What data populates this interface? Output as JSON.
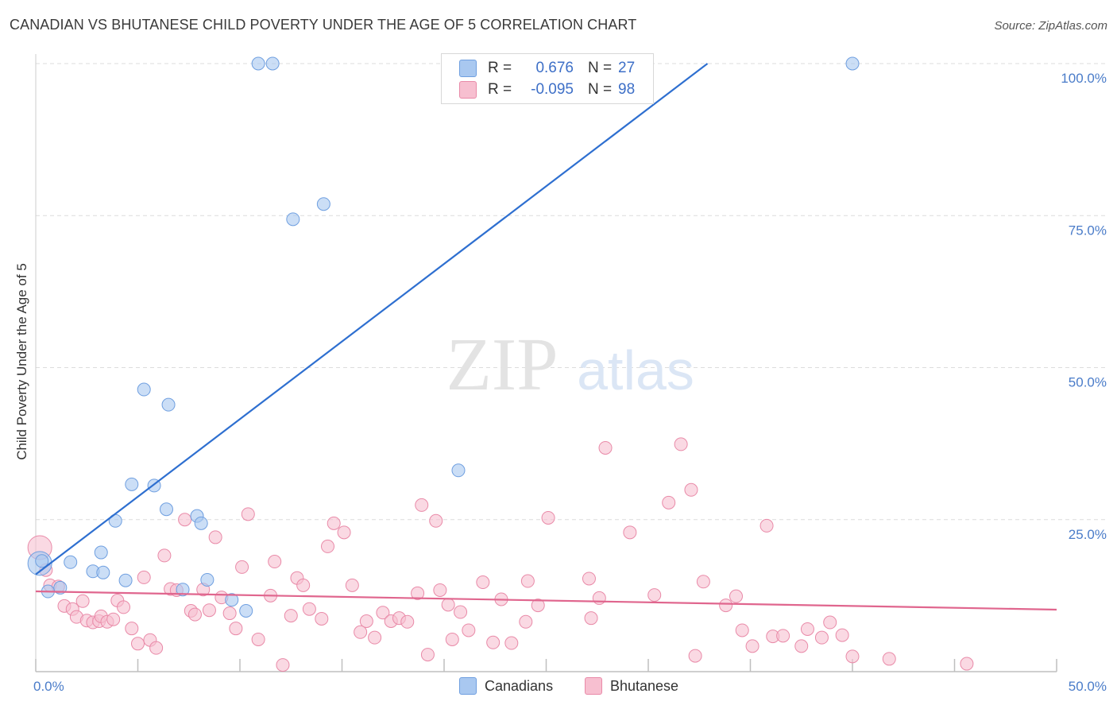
{
  "title": "CANADIAN VS BHUTANESE CHILD POVERTY UNDER THE AGE OF 5 CORRELATION CHART",
  "source": "Source: ZipAtlas.com",
  "watermark": {
    "zip": "ZIP",
    "atlas": "atlas"
  },
  "legend": {
    "rows": [
      {
        "r_label": "R =",
        "r_value": "0.676",
        "n_label": "N =",
        "n_value": "27",
        "color": "#a9c8f0",
        "border": "#6f9fe0"
      },
      {
        "r_label": "R =",
        "r_value": "-0.095",
        "n_label": "N =",
        "n_value": "98",
        "color": "#f7bfd0",
        "border": "#e98aa8"
      }
    ]
  },
  "bottom_legend": [
    {
      "label": "Canadians",
      "color": "#a9c8f0",
      "border": "#6f9fe0"
    },
    {
      "label": "Bhutanese",
      "color": "#f7bfd0",
      "border": "#e98aa8"
    }
  ],
  "chart_data": {
    "type": "scatter",
    "title": "CANADIAN VS BHUTANESE CHILD POVERTY UNDER THE AGE OF 5 CORRELATION CHART",
    "xlabel": "",
    "ylabel": "Child Poverty Under the Age of 5",
    "xlim": [
      0,
      50
    ],
    "ylim": [
      0,
      100
    ],
    "x_tick_labels": [
      "0.0%",
      "50.0%"
    ],
    "y_ticks": [
      25,
      50,
      75,
      100
    ],
    "y_tick_labels": [
      "25.0%",
      "50.0%",
      "75.0%",
      "100.0%"
    ],
    "series": [
      {
        "name": "Canadians",
        "color": "#a9c8f0",
        "border": "#6f9fe0",
        "line_color": "#2e6fd0",
        "trend": [
          [
            0.0,
            16.0
          ],
          [
            32.9,
            100.0
          ]
        ],
        "points": [
          [
            0.2,
            17.8
          ],
          [
            0.6,
            13.2
          ],
          [
            1.2,
            13.8
          ],
          [
            1.7,
            18.0
          ],
          [
            2.8,
            16.5
          ],
          [
            3.3,
            16.3
          ],
          [
            3.2,
            19.6
          ],
          [
            3.9,
            24.8
          ],
          [
            4.4,
            15.0
          ],
          [
            4.7,
            30.8
          ],
          [
            5.3,
            46.4
          ],
          [
            5.8,
            30.6
          ],
          [
            6.4,
            26.7
          ],
          [
            6.5,
            43.9
          ],
          [
            7.2,
            13.5
          ],
          [
            7.9,
            25.6
          ],
          [
            8.1,
            24.4
          ],
          [
            8.4,
            15.1
          ],
          [
            9.6,
            11.8
          ],
          [
            10.3,
            10.0
          ],
          [
            10.9,
            100.0
          ],
          [
            11.6,
            100.0
          ],
          [
            12.6,
            74.4
          ],
          [
            14.1,
            76.9
          ],
          [
            20.7,
            33.1
          ],
          [
            40.0,
            100.0
          ],
          [
            0.3,
            18.2
          ]
        ]
      },
      {
        "name": "Bhutanese",
        "color": "#f7bfd0",
        "border": "#e98aa8",
        "line_color": "#e0668e",
        "trend": [
          [
            0.0,
            13.2
          ],
          [
            50.0,
            10.2
          ]
        ],
        "points": [
          [
            0.2,
            20.4
          ],
          [
            0.5,
            16.7
          ],
          [
            0.7,
            14.2
          ],
          [
            1.1,
            14.0
          ],
          [
            1.4,
            10.8
          ],
          [
            1.8,
            10.3
          ],
          [
            2.0,
            9.0
          ],
          [
            2.3,
            11.6
          ],
          [
            2.5,
            8.4
          ],
          [
            2.8,
            8.1
          ],
          [
            3.1,
            8.3
          ],
          [
            3.2,
            9.1
          ],
          [
            3.5,
            8.2
          ],
          [
            3.8,
            8.6
          ],
          [
            4.0,
            11.7
          ],
          [
            4.3,
            10.6
          ],
          [
            4.7,
            7.1
          ],
          [
            5.0,
            4.6
          ],
          [
            5.3,
            15.5
          ],
          [
            5.6,
            5.2
          ],
          [
            5.9,
            3.9
          ],
          [
            6.3,
            19.1
          ],
          [
            6.6,
            13.6
          ],
          [
            6.9,
            13.4
          ],
          [
            7.3,
            25.0
          ],
          [
            7.6,
            10.0
          ],
          [
            7.8,
            9.4
          ],
          [
            8.2,
            13.5
          ],
          [
            8.5,
            10.1
          ],
          [
            8.8,
            22.1
          ],
          [
            9.1,
            12.2
          ],
          [
            9.5,
            9.6
          ],
          [
            9.8,
            7.1
          ],
          [
            10.1,
            17.2
          ],
          [
            10.4,
            25.9
          ],
          [
            10.9,
            5.3
          ],
          [
            11.5,
            12.5
          ],
          [
            11.7,
            18.1
          ],
          [
            12.1,
            1.1
          ],
          [
            12.5,
            9.2
          ],
          [
            12.8,
            15.4
          ],
          [
            13.1,
            14.2
          ],
          [
            13.4,
            10.3
          ],
          [
            14.0,
            8.7
          ],
          [
            14.3,
            20.6
          ],
          [
            14.6,
            24.4
          ],
          [
            15.1,
            22.9
          ],
          [
            15.5,
            14.2
          ],
          [
            15.9,
            6.5
          ],
          [
            16.2,
            8.3
          ],
          [
            16.6,
            5.6
          ],
          [
            17.0,
            9.7
          ],
          [
            17.4,
            8.3
          ],
          [
            17.8,
            8.8
          ],
          [
            18.2,
            8.2
          ],
          [
            18.7,
            12.9
          ],
          [
            18.9,
            27.4
          ],
          [
            19.2,
            2.8
          ],
          [
            19.6,
            24.8
          ],
          [
            19.8,
            13.4
          ],
          [
            20.2,
            11.0
          ],
          [
            20.4,
            5.3
          ],
          [
            20.8,
            9.8
          ],
          [
            21.2,
            6.8
          ],
          [
            21.9,
            14.7
          ],
          [
            22.4,
            4.8
          ],
          [
            22.8,
            11.9
          ],
          [
            23.3,
            4.7
          ],
          [
            24.0,
            8.2
          ],
          [
            24.1,
            14.9
          ],
          [
            24.6,
            10.9
          ],
          [
            25.1,
            25.3
          ],
          [
            27.1,
            15.3
          ],
          [
            27.2,
            8.8
          ],
          [
            27.6,
            12.1
          ],
          [
            27.9,
            36.8
          ],
          [
            29.1,
            22.9
          ],
          [
            30.3,
            12.6
          ],
          [
            31.0,
            27.8
          ],
          [
            31.6,
            37.4
          ],
          [
            32.1,
            29.9
          ],
          [
            32.3,
            2.6
          ],
          [
            32.7,
            14.8
          ],
          [
            33.8,
            10.9
          ],
          [
            34.3,
            12.4
          ],
          [
            34.6,
            6.8
          ],
          [
            35.1,
            4.2
          ],
          [
            35.8,
            24.0
          ],
          [
            36.1,
            5.8
          ],
          [
            36.6,
            5.9
          ],
          [
            37.5,
            4.2
          ],
          [
            37.8,
            7.0
          ],
          [
            38.5,
            5.6
          ],
          [
            38.9,
            8.1
          ],
          [
            39.5,
            6.0
          ],
          [
            40.0,
            2.5
          ],
          [
            41.8,
            2.1
          ],
          [
            45.6,
            1.3
          ]
        ]
      }
    ]
  }
}
